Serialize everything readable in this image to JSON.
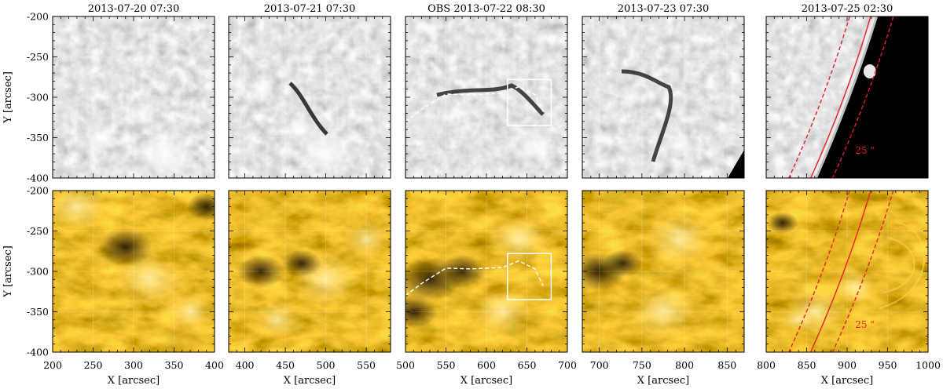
{
  "figure": {
    "columns": [
      {
        "title": "2013-07-20 07:30",
        "x_ticks": [
          "200",
          "250",
          "300",
          "350",
          "400"
        ]
      },
      {
        "title": "2013-07-21 07:30",
        "x_ticks": [
          "400",
          "450",
          "500",
          "550"
        ]
      },
      {
        "title": "OBS 2013-07-22 08:30",
        "x_ticks": [
          "500",
          "550",
          "600",
          "650",
          "700"
        ]
      },
      {
        "title": "2013-07-23 07:30",
        "x_ticks": [
          "700",
          "750",
          "800",
          "850"
        ]
      },
      {
        "title": "2013-07-25 02:30",
        "x_ticks": [
          "800",
          "850",
          "900",
          "950",
          "1000"
        ]
      }
    ],
    "y_ticks": [
      "-200",
      "-250",
      "-300",
      "-350",
      "-400"
    ],
    "xlabel": "X [arcsec]",
    "ylabel": "Y [arcsec]",
    "limb_annotation": "25 \"",
    "rows": [
      {
        "channel": "H-alpha grayscale",
        "colormap": "gray"
      },
      {
        "channel": "EUV",
        "colormap": "gold"
      }
    ],
    "colors": {
      "limb_line": "#e8202a",
      "filament_trace": "#ffffff",
      "box": "#ffffff",
      "gold_bright": "#ffd45a",
      "gold_dark": "#2a1500"
    }
  }
}
